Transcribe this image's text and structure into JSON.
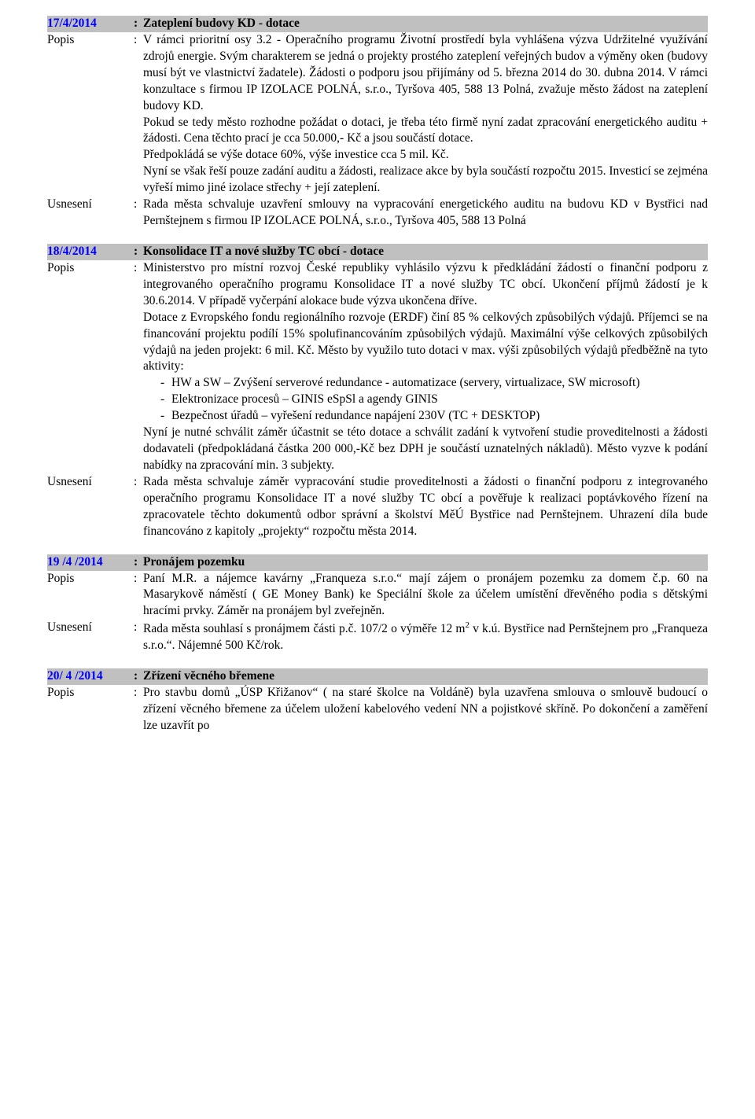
{
  "labels": {
    "popis": "Popis",
    "usneseni": "Usnesení",
    "sep": ":"
  },
  "items": [
    {
      "date": "17/4/2014",
      "title": "Zateplení budovy KD - dotace",
      "popis_paras": [
        "V rámci prioritní osy 3.2 - Operačního programu Životní prostředí byla vyhlášena výzva Udržitelné využívání zdrojů energie. Svým charakterem se jedná o projekty prostého zateplení veřejných budov a výměny oken (budovy musí být ve vlastnictví žadatele). Žádosti o podporu jsou přijímány od 5. března 2014 do 30. dubna 2014. V rámci konzultace s firmou IP IZOLACE POLNÁ, s.r.o., Tyršova 405, 588 13 Polná, zvažuje město žádost na zateplení budovy KD.",
        "Pokud se tedy město rozhodne požádat o dotaci, je třeba této firmě nyní zadat zpracování energetického auditu + žádosti. Cena těchto prací je cca 50.000,- Kč a jsou součástí dotace.",
        "Předpokládá se výše dotace 60%, výše investice cca 5 mil. Kč.",
        "Nyní se však řeší pouze zadání auditu a žádosti, realizace akce by byla součástí rozpočtu 2015. Investicí se zejména vyřeší mimo jiné izolace střechy + její zateplení."
      ],
      "usneseni": "Rada města schvaluje uzavření smlouvy na vypracování energetického auditu  na budovu  KD v Bystřici nad Pernštejnem s firmou IP IZOLACE POLNÁ, s.r.o., Tyršova 405, 588 13 Polná"
    },
    {
      "date": "18/4/2014",
      "title": "Konsolidace IT a nové služby TC obcí - dotace",
      "popis_paras": [
        "Ministerstvo pro místní rozvoj České republiky vyhlásilo výzvu k předkládání žádostí o finanční podporu z integrovaného operačního programu Konsolidace IT a nové služby TC obcí. Ukončení příjmů žádostí je k 30.6.2014. V případě vyčerpání alokace bude výzva ukončena dříve.",
        "Dotace z Evropského fondu regionálního rozvoje (ERDF) činí 85 % celkových způsobilých výdajů. Příjemci se na financování projektu podílí 15% spolufinancováním způsobilých výdajů. Maximální výše celkových způsobilých výdajů na jeden projekt: 6 mil. Kč. Město by využilo tuto dotaci v max. výši způsobilých výdajů předběžně na tyto aktivity:"
      ],
      "popis_list": [
        "HW a SW – Zvýšení serverové redundance - automatizace (servery, virtualizace, SW microsoft)",
        "Elektronizace procesů – GINIS eSpSl a agendy GINIS",
        "Bezpečnost úřadů – vyřešení redundance napájení 230V (TC + DESKTOP)"
      ],
      "popis_after": [
        "Nyní je nutné schválit záměr účastnit se této dotace a schválit zadání k vytvoření studie proveditelnosti a žádosti dodavateli (předpokládaná částka 200 000,-Kč bez DPH je součástí uznatelných nákladů). Město vyzve k podání nabídky na zpracování min. 3 subjekty."
      ],
      "usneseni": "Rada města schvaluje záměr vypracování studie proveditelnosti a žádosti o finanční podporu z integrovaného operačního programu Konsolidace IT a nové služby TC obcí a pověřuje k realizaci poptávkového řízení na zpracovatele těchto dokumentů odbor správní a školství MěÚ Bystřice nad Pernštejnem. Uhrazení díla bude financováno z kapitoly „projekty“ rozpočtu města 2014."
    },
    {
      "date": "19 /4 /2014",
      "title": "Pronájem pozemku",
      "popis_paras": [
        "Paní M.R. a nájemce kavárny „Franqueza s.r.o.“ mají zájem o pronájem pozemku za domem č.p. 60 na Masarykově náměstí ( GE Money Bank) ke Speciální škole za účelem umístění dřevěného podia s dětskými hracími prvky. Záměr na pronájem byl zveřejněn."
      ],
      "usneseni_html": "Rada města souhlasí s pronájmem části p.č. 107/2 o výměře 12 m<sup>2</sup> v k.ú. Bystřice nad Pernštejnem pro „Franqueza s.r.o.“. Nájemné 500 Kč/rok."
    },
    {
      "date": "20/ 4 /2014",
      "title": "Zřízení věcného břemene",
      "popis_paras": [
        "Pro stavbu domů „ÚSP Křižanov“  ( na staré školce na Voldáně)   byla uzavřena smlouva o smlouvě budoucí o zřízení věcného břemene za účelem uložení kabelového vedení  NN a pojistkové skříně. Po dokončení a zaměření lze uzavřít po"
      ]
    }
  ]
}
